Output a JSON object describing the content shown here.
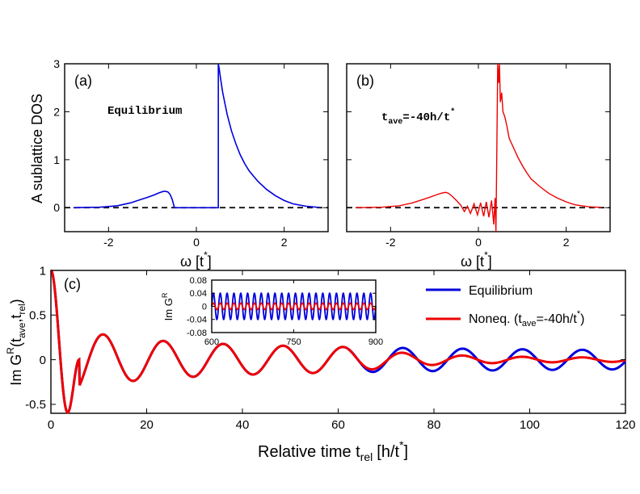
{
  "colors": {
    "blue": "#0000dd",
    "red": "#ee0000"
  },
  "chart_data": [
    {
      "panel": "(a)",
      "type": "line",
      "annotation": "Equilibrium",
      "ylabel": "A sublattice DOS",
      "xlabel": "ω [t",
      "xlabel_sup": "*",
      "xlabel_close": "]",
      "xlim": [
        -3,
        3
      ],
      "ylim": [
        -0.5,
        3
      ],
      "xticks": [
        -2,
        0,
        2
      ],
      "yticks": [
        0,
        1,
        2,
        3
      ],
      "reference_line": 0,
      "series": [
        {
          "name": "Equilibrium",
          "color": "blue",
          "x": [
            -2.8,
            -2.2,
            -1.8,
            -1.5,
            -1.3,
            -1.1,
            -0.95,
            -0.85,
            -0.75,
            -0.7,
            -0.65,
            -0.6,
            -0.55,
            -0.52,
            -0.5,
            0.45,
            0.5,
            0.5,
            0.52,
            0.55,
            0.6,
            0.7,
            0.8,
            0.9,
            1.0,
            1.1,
            1.2,
            1.4,
            1.6,
            1.8,
            2.0,
            2.2,
            2.5,
            2.8
          ],
          "y": [
            0,
            0.01,
            0.04,
            0.1,
            0.16,
            0.22,
            0.27,
            0.31,
            0.34,
            0.34,
            0.33,
            0.28,
            0.17,
            0.07,
            0,
            0,
            0,
            3.0,
            2.9,
            2.7,
            2.4,
            1.95,
            1.6,
            1.33,
            1.1,
            0.92,
            0.77,
            0.55,
            0.38,
            0.25,
            0.15,
            0.08,
            0.03,
            0.005
          ]
        }
      ]
    },
    {
      "panel": "(b)",
      "type": "line",
      "annotation": "t",
      "annotation_sub": "ave",
      "annotation_rest": "=-40h/t",
      "annotation_sup": "*",
      "xlabel": "ω [t",
      "xlabel_sup": "*",
      "xlabel_close": "]",
      "xlim": [
        -3,
        3
      ],
      "ylim": [
        -0.5,
        3
      ],
      "xticks": [
        -2,
        0,
        2
      ],
      "yticks": [
        0,
        1,
        2,
        3
      ],
      "reference_line": 0,
      "series": [
        {
          "name": "Noneq.",
          "color": "red",
          "x": [
            -2.8,
            -2.2,
            -1.8,
            -1.5,
            -1.3,
            -1.1,
            -0.95,
            -0.85,
            -0.75,
            -0.68,
            -0.6,
            -0.5,
            -0.4,
            -0.32,
            -0.25,
            -0.18,
            -0.1,
            -0.02,
            0.05,
            0.12,
            0.18,
            0.24,
            0.3,
            0.35,
            0.38,
            0.4,
            0.42,
            0.44,
            0.46,
            0.48,
            0.5,
            0.53,
            0.56,
            0.6,
            0.65,
            0.7,
            0.8,
            0.9,
            1.0,
            1.1,
            1.2,
            1.4,
            1.6,
            1.8,
            2.0,
            2.2,
            2.5,
            2.8
          ],
          "y": [
            0,
            0.01,
            0.04,
            0.1,
            0.16,
            0.22,
            0.27,
            0.3,
            0.32,
            0.3,
            0.24,
            0.15,
            0.05,
            -0.08,
            0.03,
            -0.12,
            0.08,
            -0.15,
            0.1,
            -0.18,
            0.12,
            -0.2,
            0.15,
            -0.35,
            0.2,
            -0.5,
            1.2,
            3.0,
            2.6,
            3.0,
            2.2,
            2.4,
            2.0,
            1.9,
            1.7,
            1.45,
            1.25,
            1.05,
            0.88,
            0.73,
            0.6,
            0.44,
            0.3,
            0.2,
            0.12,
            0.06,
            0.02,
            0.005
          ]
        }
      ]
    },
    {
      "panel": "(c)",
      "type": "line",
      "ylabel": "Im G",
      "ylabel_sup": "R",
      "ylabel_args": "(t",
      "ylabel_sub1": "ave",
      "ylabel_mid": ",t",
      "ylabel_sub2": "rel",
      "ylabel_close": ")",
      "xlabel": "Relative time t",
      "xlabel_sub": "rel",
      "xlabel_rest": "[h/t",
      "xlabel_sup": "*",
      "xlabel_close": "]",
      "xlim": [
        0,
        120
      ],
      "ylim": [
        -0.6,
        1.0
      ],
      "xticks": [
        0,
        20,
        40,
        60,
        80,
        100,
        120
      ],
      "yticks": [
        -0.5,
        0,
        0.5,
        1
      ],
      "legend": [
        {
          "label": "Equilibrium",
          "color": "blue"
        },
        {
          "label": "Noneq. (t",
          "sub": "ave",
          "rest": "=-40h/t",
          "sup": "*",
          "close": ")",
          "color": "red"
        }
      ],
      "series": [
        {
          "name": "Equilibrium",
          "color": "blue",
          "model": "J0(t)/... decaying oscillation; peak 1.0 at t=0, first min -0.53 at t=4, period 12.5, amplitude ~0.3 at t=11 decaying to ~0.1 at t=120"
        },
        {
          "name": "Noneq.",
          "color": "red",
          "model": "identical to Equilibrium for t<62; beyond, amplitude damps to ~0.02 by t=120"
        }
      ],
      "inset": {
        "ylabel": "Im G",
        "ylabel_sup": "R",
        "xlim": [
          600,
          900
        ],
        "ylim": [
          -0.08,
          0.08
        ],
        "xticks": [
          600,
          750,
          900
        ],
        "yticks": [
          -0.08,
          -0.04,
          0,
          0.04,
          0.08
        ],
        "series": [
          {
            "name": "Equilibrium",
            "color": "blue",
            "amplitude": 0.04,
            "period": 12.5
          },
          {
            "name": "Noneq.",
            "color": "red",
            "amplitude": 0.01,
            "period": 12.5
          }
        ]
      }
    }
  ]
}
